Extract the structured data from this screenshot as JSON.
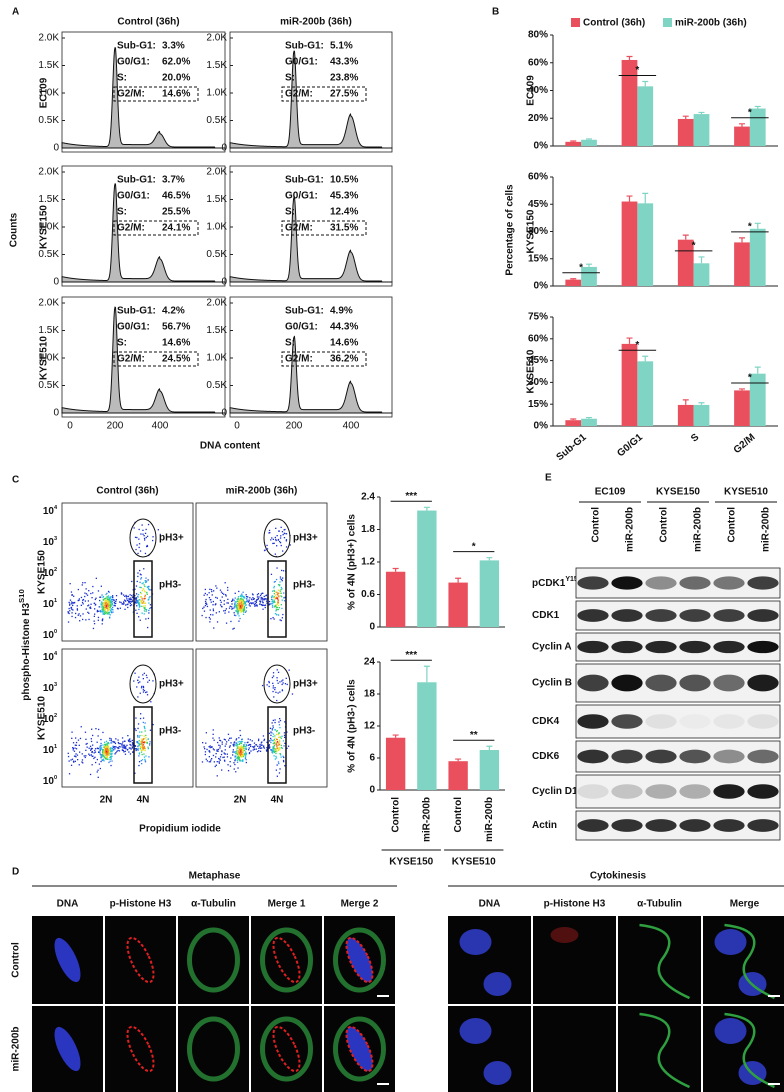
{
  "panel_a": {
    "label": "A",
    "columns": [
      "Control (36h)",
      "miR-200b (36h)"
    ],
    "rows": [
      "EC109",
      "KYSE150",
      "KYSE510"
    ],
    "y_label": "Counts",
    "x_label": "DNA content",
    "yticks": [
      "0",
      "0.5K",
      "1.0K",
      "1.5K",
      "2.0K"
    ],
    "xticks": [
      "0",
      "200",
      "400"
    ],
    "stat_names": [
      "Sub-G1:",
      "G0/G1:",
      "S:",
      "G2/M:"
    ],
    "stats": [
      [
        [
          "3.3%",
          "62.0%",
          "20.0%",
          "14.6%"
        ],
        [
          "5.1%",
          "43.3%",
          "23.8%",
          "27.5%"
        ]
      ],
      [
        [
          "3.7%",
          "46.5%",
          "25.5%",
          "24.1%"
        ],
        [
          "10.5%",
          "45.3%",
          "12.4%",
          "31.5%"
        ]
      ],
      [
        [
          "4.2%",
          "56.7%",
          "14.6%",
          "24.5%"
        ],
        [
          "4.9%",
          "44.3%",
          "14.6%",
          "36.2%"
        ]
      ]
    ]
  },
  "panel_b": {
    "label": "B",
    "y_label": "Percentage of cells"
  },
  "chart_data": [
    {
      "type": "bar",
      "y_label": "EC109",
      "ylim": [
        0,
        80
      ],
      "yticks": [
        {
          "value": 0,
          "label": "0%"
        },
        {
          "value": 20,
          "label": "20%"
        },
        {
          "value": 40,
          "label": "40%"
        },
        {
          "value": 60,
          "label": "60%"
        },
        {
          "value": 80,
          "label": "80%"
        }
      ],
      "series": [
        {
          "name": "Control (36h)",
          "color": "#ea4f5e",
          "values": [
            3,
            62,
            19.5,
            14
          ],
          "errors": [
            0.6,
            2.5,
            2,
            2
          ]
        },
        {
          "name": "miR-200b (36h)",
          "color": "#7fd4c4",
          "values": [
            4.5,
            43,
            23,
            27
          ],
          "errors": [
            0.6,
            3.5,
            1.2,
            1.5
          ]
        }
      ],
      "significance": [
        null,
        "*",
        null,
        "*"
      ]
    },
    {
      "type": "bar",
      "y_label": "KYSE150",
      "ylim": [
        0,
        60
      ],
      "yticks": [
        {
          "value": 0,
          "label": "0%"
        },
        {
          "value": 15,
          "label": "15%"
        },
        {
          "value": 30,
          "label": "30%"
        },
        {
          "value": 45,
          "label": "45%"
        },
        {
          "value": 60,
          "label": "60%"
        }
      ],
      "series": [
        {
          "color": "#ea4f5e",
          "values": [
            3.5,
            46.5,
            25.5,
            24
          ],
          "errors": [
            0.5,
            3,
            2.5,
            2.5
          ]
        },
        {
          "color": "#7fd4c4",
          "values": [
            10.5,
            45.5,
            12.5,
            31.5
          ],
          "errors": [
            1.5,
            5.5,
            3.5,
            3
          ]
        }
      ],
      "significance": [
        "*",
        null,
        "*",
        "*"
      ]
    },
    {
      "type": "bar",
      "y_label": "KYSE510",
      "ylim": [
        0,
        75
      ],
      "yticks": [
        {
          "value": 0,
          "label": "0%"
        },
        {
          "value": 15,
          "label": "15%"
        },
        {
          "value": 30,
          "label": "30%"
        },
        {
          "value": 45,
          "label": "45%"
        },
        {
          "value": 60,
          "label": "60%"
        },
        {
          "value": 75,
          "label": "75%"
        }
      ],
      "categories": [
        "Sub-G1",
        "G0/G1",
        "S",
        "G2/M"
      ],
      "series": [
        {
          "color": "#ea4f5e",
          "values": [
            4,
            56.5,
            14.5,
            24.5
          ],
          "errors": [
            0.8,
            4,
            3.5,
            1
          ]
        },
        {
          "color": "#7fd4c4",
          "values": [
            5,
            44.5,
            14.5,
            36
          ],
          "errors": [
            0.8,
            3.5,
            1.5,
            4.5
          ]
        }
      ],
      "significance": [
        null,
        "*",
        null,
        "*"
      ]
    },
    {
      "type": "bar",
      "y_label": "% of 4N (pH3+) cells",
      "ylim": [
        0,
        2.4
      ],
      "yticks": [
        0,
        0.6,
        1.2,
        1.8,
        2.4
      ],
      "values": [
        1.02,
        2.15,
        0.82,
        1.23
      ],
      "errors": [
        0.06,
        0.06,
        0.08,
        0.05
      ],
      "colors": [
        "#ea4f5e",
        "#7fd4c4",
        "#ea4f5e",
        "#7fd4c4"
      ],
      "significance": [
        "***",
        "*"
      ]
    },
    {
      "type": "bar",
      "y_label": "% of 4N (pH3-) cells",
      "ylim": [
        0,
        24
      ],
      "yticks": [
        0,
        6,
        12,
        18,
        24
      ],
      "values": [
        9.8,
        20.2,
        5.4,
        7.5
      ],
      "errors": [
        0.5,
        3,
        0.4,
        0.7
      ],
      "colors": [
        "#ea4f5e",
        "#7fd4c4",
        "#ea4f5e",
        "#7fd4c4"
      ],
      "significance": [
        "***",
        "**"
      ],
      "categories": [
        "Control",
        "miR-200b",
        "Control",
        "miR-200b"
      ],
      "groups": [
        "KYSE150",
        "KYSE510"
      ]
    }
  ],
  "panel_c": {
    "label": "C",
    "columns": [
      "Control (36h)",
      "miR-200b (36h)"
    ],
    "rows": [
      "KYSE150",
      "KYSE510"
    ],
    "gates": [
      "pH3+",
      "pH3-"
    ],
    "y_label": {
      "text": "phospho-Histone H3",
      "sup": "S10"
    },
    "x_label": "Propidium iodide",
    "yticks": [
      {
        "base": "10",
        "sup": "4"
      },
      {
        "base": "10",
        "sup": "3"
      },
      {
        "base": "10",
        "sup": "2"
      },
      {
        "base": "10",
        "sup": "1"
      },
      {
        "base": "10",
        "sup": "0"
      }
    ],
    "xticks": [
      "2N",
      "4N"
    ]
  },
  "panel_d": {
    "label": "D",
    "rows": [
      "Control",
      "miR-200b"
    ],
    "sections": [
      {
        "title": "Metaphase",
        "columns": [
          "DNA",
          "p-Histone H3",
          "α-Tubulin",
          "Merge 1",
          "Merge 2"
        ]
      },
      {
        "title": "Cytokinesis",
        "columns": [
          "DNA",
          "p-Histone H3",
          "α-Tubulin",
          "Merge"
        ]
      }
    ]
  },
  "panel_e": {
    "label": "E",
    "cell_lines": [
      "EC109",
      "KYSE150",
      "KYSE510"
    ],
    "lanes": [
      "Control",
      "miR-200b",
      "Control",
      "miR-200b",
      "Control",
      "miR-200b"
    ],
    "proteins": [
      {
        "text": "pCDK1",
        "sup": "Y15"
      },
      "CDK1",
      "Cyclin A",
      "Cyclin B",
      "CDK4",
      "CDK6",
      "Cyclin D1",
      "Actin"
    ]
  }
}
